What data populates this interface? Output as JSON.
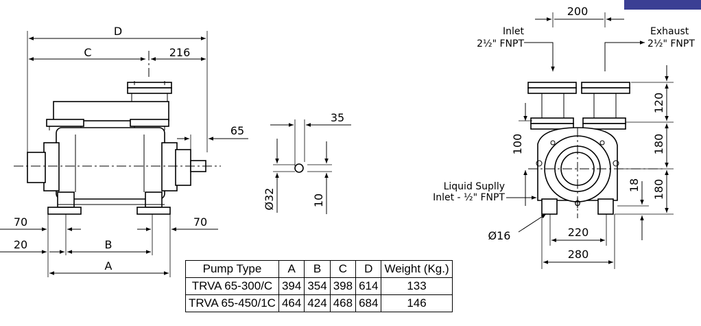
{
  "side_view": {
    "dims": {
      "D": "D",
      "C": "C",
      "A": "A",
      "B": "B",
      "c216": "216",
      "c65": "65",
      "c70_left": "70",
      "c70_right": "70",
      "c20": "20"
    }
  },
  "shaft_detail": {
    "dims": {
      "c35": "35",
      "d32": "Ø32",
      "c10": "10"
    }
  },
  "end_view": {
    "dims": {
      "c200": "200",
      "c120": "120",
      "c180_top": "180",
      "c180_bottom": "180",
      "c18": "18",
      "c100": "100",
      "c220": "220",
      "c280": "280",
      "d16": "Ø16",
      "phi": "ϕ"
    },
    "inlet_label": "Inlet",
    "inlet_size": "2½\" FNPT",
    "exhaust_label": "Exhaust",
    "exhaust_size": "2½\" FNPT",
    "liquid_label_1": "Liquid Suplly",
    "liquid_label_2": "Inlet - ½\" FNPT"
  },
  "spec_table": {
    "headers": [
      "Pump Type",
      "A",
      "B",
      "C",
      "D",
      "Weight (Kg.)"
    ],
    "rows": [
      [
        "TRVA 65-300/C",
        "394",
        "354",
        "398",
        "614",
        "133"
      ],
      [
        "TRVA 65-450/1C",
        "464",
        "424",
        "468",
        "684",
        "146"
      ]
    ]
  },
  "colors": {
    "corner_tag": "#3b3f94"
  }
}
